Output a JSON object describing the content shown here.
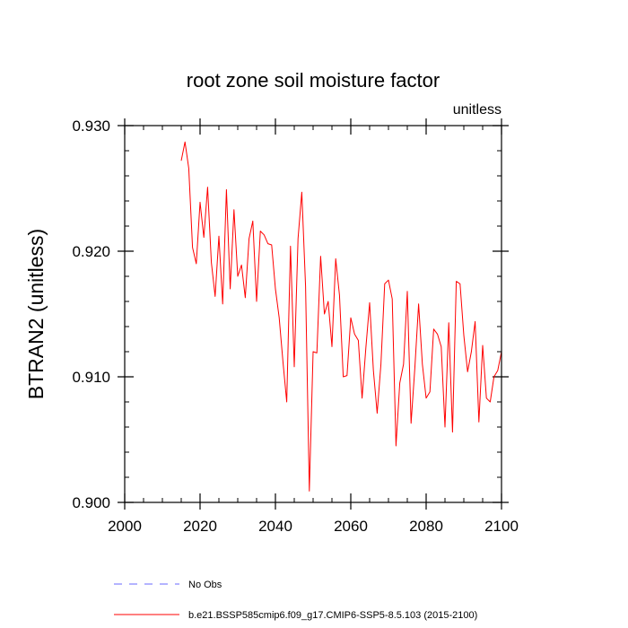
{
  "chart_data": {
    "type": "line",
    "title": "root zone soil moisture factor",
    "units_label": "unitless",
    "xlabel": "",
    "ylabel": "BTRAN2  (unitless)",
    "xlim": [
      2000,
      2100
    ],
    "ylim": [
      0.9,
      0.93
    ],
    "x_ticks": [
      2000,
      2020,
      2040,
      2060,
      2080,
      2100
    ],
    "x_tick_labels": [
      "2000",
      "2020",
      "2040",
      "2060",
      "2080",
      "2100"
    ],
    "y_ticks": [
      0.9,
      0.91,
      0.92,
      0.93
    ],
    "y_tick_labels": [
      "0.900",
      "0.910",
      "0.920",
      "0.930"
    ],
    "x_minor_step": 5,
    "y_minor_step": 0.002,
    "legend": [
      {
        "label": "No Obs",
        "color": "#6a6aff",
        "style": "dashed"
      },
      {
        "label": "b.e21.BSSP585cmip6.f09_g17.CMIP6-SSP5-8.5.103 (2015-2100)",
        "color": "#ff0000",
        "style": "solid"
      }
    ],
    "series": [
      {
        "name": "b.e21.BSSP585cmip6.f09_g17.CMIP6-SSP5-8.5.103 (2015-2100)",
        "color": "#ff0000",
        "x": [
          2015,
          2016,
          2017,
          2018,
          2019,
          2020,
          2021,
          2022,
          2023,
          2024,
          2025,
          2026,
          2027,
          2028,
          2029,
          2030,
          2031,
          2032,
          2033,
          2034,
          2035,
          2036,
          2037,
          2038,
          2039,
          2040,
          2041,
          2042,
          2043,
          2044,
          2045,
          2046,
          2047,
          2048,
          2049,
          2050,
          2051,
          2052,
          2053,
          2054,
          2055,
          2056,
          2057,
          2058,
          2059,
          2060,
          2061,
          2062,
          2063,
          2064,
          2065,
          2066,
          2067,
          2068,
          2069,
          2070,
          2071,
          2072,
          2073,
          2074,
          2075,
          2076,
          2077,
          2078,
          2079,
          2080,
          2081,
          2082,
          2083,
          2084,
          2085,
          2086,
          2087,
          2088,
          2089,
          2090,
          2091,
          2092,
          2093,
          2094,
          2095,
          2096,
          2097,
          2098,
          2099,
          2100
        ],
        "values": [
          0.9272,
          0.9287,
          0.9266,
          0.9203,
          0.919,
          0.9239,
          0.9211,
          0.9251,
          0.9191,
          0.9164,
          0.9212,
          0.9158,
          0.9249,
          0.917,
          0.9233,
          0.918,
          0.9189,
          0.9163,
          0.921,
          0.9224,
          0.916,
          0.9216,
          0.9213,
          0.9206,
          0.9205,
          0.917,
          0.9147,
          0.9112,
          0.908,
          0.9204,
          0.9108,
          0.921,
          0.9247,
          0.9172,
          0.9009,
          0.912,
          0.9119,
          0.9196,
          0.915,
          0.916,
          0.9124,
          0.9194,
          0.9165,
          0.91,
          0.9101,
          0.9147,
          0.9134,
          0.9129,
          0.9083,
          0.9123,
          0.9159,
          0.9105,
          0.9071,
          0.911,
          0.9174,
          0.9177,
          0.9162,
          0.9045,
          0.9095,
          0.911,
          0.9168,
          0.9063,
          0.9107,
          0.9158,
          0.911,
          0.9083,
          0.9088,
          0.9138,
          0.9134,
          0.9124,
          0.906,
          0.9143,
          0.9056,
          0.9176,
          0.9174,
          0.9133,
          0.9104,
          0.912,
          0.9144,
          0.9064,
          0.9125,
          0.9083,
          0.908,
          0.91,
          0.9105,
          0.912
        ]
      }
    ]
  }
}
